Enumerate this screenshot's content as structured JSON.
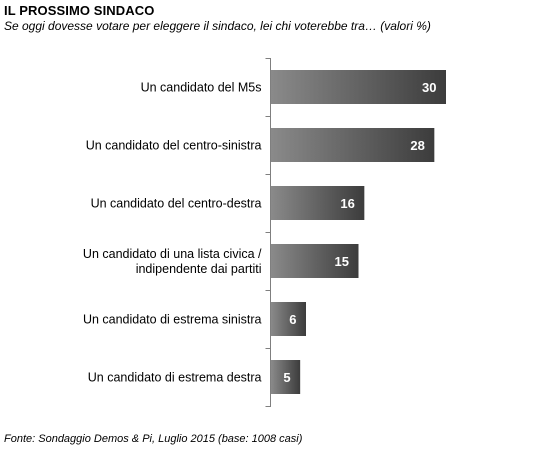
{
  "header": {
    "title": "IL PROSSIMO SINDACO",
    "subtitle": "Se oggi dovesse votare per eleggere il sindaco, lei chi voterebbe tra… (valori %)"
  },
  "footer": {
    "source": "Fonte: Sondaggio Demos & Pi, Luglio 2015 (base: 1008 casi)"
  },
  "chart_data": {
    "type": "bar",
    "orientation": "horizontal",
    "title": "IL PROSSIMO SINDACO",
    "subtitle": "Se oggi dovesse votare per eleggere il sindaco, lei chi voterebbe tra… (valori %)",
    "categories": [
      [
        "Un candidato del M5s"
      ],
      [
        "Un candidato del centro-sinistra"
      ],
      [
        "Un candidato del centro-destra"
      ],
      [
        "Un candidato di una lista civica /",
        "indipendente dai partiti"
      ],
      [
        "Un candidato di estrema sinistra"
      ],
      [
        "Un candidato di estrema destra"
      ]
    ],
    "values": [
      30,
      28,
      16,
      15,
      6,
      5
    ],
    "data_labels": true,
    "xlim": [
      0,
      30
    ],
    "grid": false,
    "legend": "none",
    "colors": {
      "bar_light": "#8a8a8a",
      "bar_dark": "#3c3c3c",
      "label": "#ffffff",
      "axis": "#7f7f7f"
    }
  }
}
